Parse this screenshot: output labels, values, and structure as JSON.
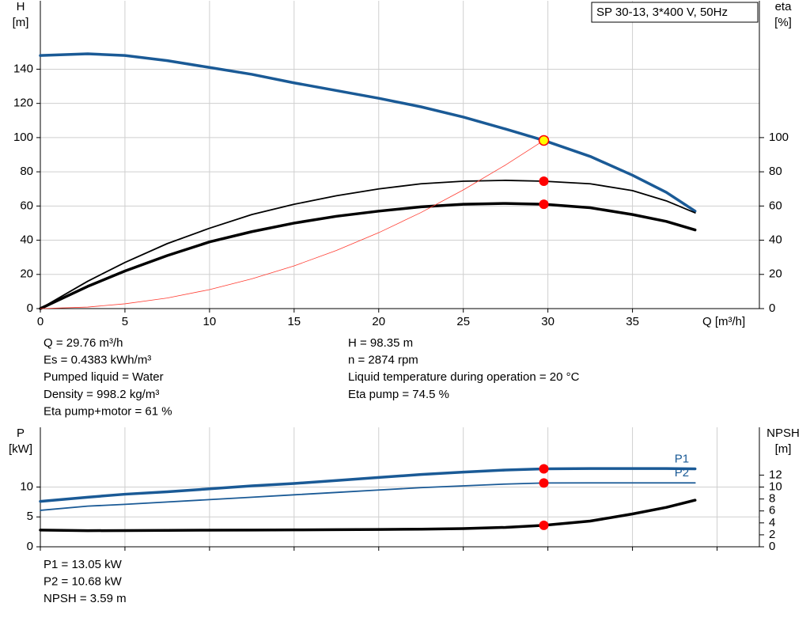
{
  "model": "SP 30-13, 3*400 V, 50Hz",
  "chart_data": [
    {
      "type": "line",
      "ylabel": "H",
      "yunit": "[m]",
      "y2label": "eta",
      "y2unit": "[%]",
      "xlabel": "Q [m³/h]",
      "xlim": [
        0,
        42.5
      ],
      "xticks": [
        0,
        5,
        10,
        15,
        20,
        25,
        30,
        35
      ],
      "ylim": [
        0,
        180
      ],
      "yticks": [
        0,
        20,
        40,
        60,
        80,
        100,
        120,
        140
      ],
      "y2lim": [
        0,
        180
      ],
      "y2ticks": [
        0,
        20,
        40,
        60,
        80,
        100
      ],
      "grid": true,
      "x": [
        0,
        2.8,
        5,
        7.5,
        10,
        12.5,
        15,
        17.5,
        20,
        22.5,
        25,
        27.5,
        29.76,
        32.5,
        35,
        37,
        38.7
      ],
      "series": [
        {
          "color": "#1a5a96",
          "width": 3.5,
          "values": [
            148,
            149,
            148,
            145,
            141,
            137,
            132,
            127.5,
            123,
            118,
            112,
            105,
            98.35,
            89,
            78,
            68,
            57
          ]
        },
        {
          "color": "#000000",
          "width": 1.8,
          "axis": "y2",
          "values": [
            0,
            16,
            27,
            38,
            47,
            55,
            61,
            66,
            70,
            73,
            74.5,
            75,
            74.5,
            73,
            69,
            63,
            56
          ]
        },
        {
          "color": "#000000",
          "width": 3.5,
          "axis": "y2",
          "values": [
            0,
            13,
            22,
            31,
            39,
            45,
            50,
            54,
            57,
            59.5,
            61,
            61.5,
            61,
            59,
            55,
            51,
            46
          ]
        },
        {
          "color": "#ff3b30",
          "width": 0.8,
          "values": [
            0,
            0.9,
            2.8,
            6.2,
            11.1,
            17.4,
            25,
            34,
            44.4,
            56.2,
            69.4,
            84,
            98.35,
            null,
            null,
            null,
            null
          ]
        }
      ],
      "operating_points": [
        {
          "x": 29.76,
          "y": 98.35,
          "color": "#ffff00"
        },
        {
          "x": 29.76,
          "y": 74.5,
          "color": "#ff0000",
          "axis": "y2"
        },
        {
          "x": 29.76,
          "y": 61,
          "color": "#ff0000",
          "axis": "y2"
        }
      ]
    },
    {
      "type": "line",
      "ylabel": "P",
      "yunit": "[kW]",
      "y2label": "NPSH",
      "y2unit": "[m]",
      "xlim": [
        0,
        42.5
      ],
      "xticks": [
        0,
        5,
        10,
        15,
        20,
        25,
        30,
        35,
        40
      ],
      "ylim": [
        0,
        20
      ],
      "yticks": [
        0,
        5,
        10
      ],
      "y2lim": [
        0,
        20
      ],
      "y2ticks": [
        0,
        2,
        4,
        6,
        8,
        10,
        12
      ],
      "grid": true,
      "x": [
        0,
        2.8,
        5,
        7.5,
        10,
        12.5,
        15,
        17.5,
        20,
        22.5,
        25,
        27.5,
        29.76,
        32.5,
        35,
        37,
        38.7
      ],
      "series": [
        {
          "name": "P1",
          "color": "#1a5a96",
          "width": 3.5,
          "values": [
            7.6,
            8.3,
            8.8,
            9.2,
            9.7,
            10.2,
            10.6,
            11.1,
            11.6,
            12.1,
            12.5,
            12.85,
            13.05,
            13.1,
            13.1,
            13.1,
            13.05
          ]
        },
        {
          "name": "P2",
          "color": "#1a5a96",
          "width": 1.8,
          "values": [
            6.1,
            6.8,
            7.1,
            7.5,
            7.9,
            8.3,
            8.7,
            9.1,
            9.5,
            9.9,
            10.2,
            10.5,
            10.68,
            10.7,
            10.7,
            10.7,
            10.7
          ]
        },
        {
          "color": "#000000",
          "width": 3.5,
          "axis": "y2",
          "values": [
            2.8,
            2.7,
            2.72,
            2.75,
            2.78,
            2.8,
            2.83,
            2.86,
            2.9,
            2.95,
            3.05,
            3.25,
            3.59,
            4.3,
            5.5,
            6.6,
            7.8
          ]
        }
      ],
      "operating_points": [
        {
          "x": 29.76,
          "y": 13.05,
          "color": "#ff0000"
        },
        {
          "x": 29.76,
          "y": 10.68,
          "color": "#ff0000"
        },
        {
          "x": 29.76,
          "y": 3.59,
          "color": "#ff0000",
          "axis": "y2"
        }
      ]
    }
  ],
  "info_top": {
    "left": [
      "Q = 29.76 m³/h",
      "Es = 0.4383 kWh/m³",
      "Pumped liquid = Water",
      "Density = 998.2 kg/m³",
      "Eta pump+motor = 61 %"
    ],
    "right": [
      "H = 98.35 m",
      "n = 2874 rpm",
      "Liquid temperature during operation = 20 °C",
      "Eta pump = 74.5 %"
    ]
  },
  "info_bottom": [
    "P1 = 13.05 kW",
    "P2 = 10.68 kW",
    "NPSH = 3.59 m"
  ]
}
